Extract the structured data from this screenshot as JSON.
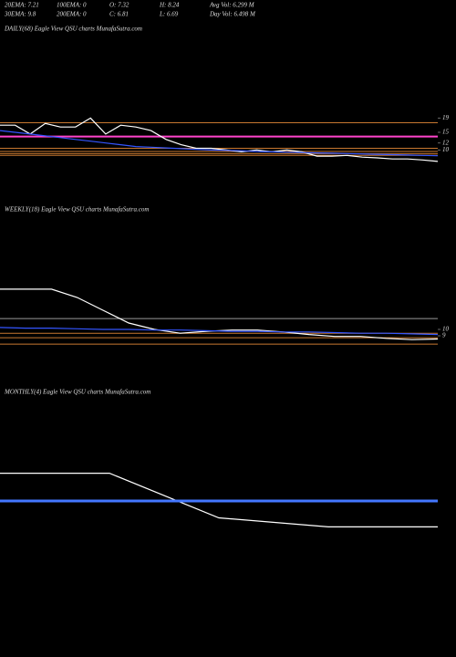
{
  "header": {
    "row1": [
      "20EMA: 7.21",
      "100EMA: 0",
      "O: 7.32",
      "H: 8.24",
      "Avg Vol: 6.299 M"
    ],
    "row2": [
      "30EMA: 9.8",
      "200EMA: 0",
      "C: 6.81",
      "L: 6.69",
      "Day Vol: 6.498 M"
    ]
  },
  "chart_data": [
    {
      "type": "line",
      "title": "DAILY(68) Eagle  View  QSU charts MunafaSutra.com",
      "categories": [
        null,
        null,
        null,
        null,
        null,
        null,
        null,
        null,
        null,
        null,
        null,
        null,
        null,
        null,
        null,
        null,
        null,
        null,
        null,
        null,
        null,
        null,
        null,
        null,
        null,
        null,
        null,
        null,
        null,
        null
      ],
      "series": [
        {
          "color": "#ffffff",
          "values": [
            17,
            17,
            14.5,
            17.5,
            16.5,
            16.5,
            19,
            14.5,
            17,
            16.5,
            15.5,
            13,
            11.5,
            10.5,
            10.5,
            10,
            9.5,
            10,
            9.5,
            10,
            9.5,
            8.3,
            8.3,
            8.5,
            8,
            7.8,
            7.5,
            7.5,
            7.2,
            6.81
          ]
        },
        {
          "color": "#3355ff",
          "values": [
            15.5,
            15,
            14.5,
            14,
            13.5,
            13,
            12.5,
            12,
            11.5,
            11,
            10.8,
            10.6,
            10.4,
            10.2,
            10,
            9.9,
            9.8,
            9.6,
            9.5,
            9.4,
            9.3,
            9.2,
            9.1,
            9,
            8.9,
            8.8,
            8.7,
            8.6,
            8.5,
            8.4
          ]
        }
      ],
      "hlines": [
        {
          "value": 17.7,
          "color": "#c87830"
        },
        {
          "value": 13.8,
          "color": "#ff44cc"
        },
        {
          "value": 10.5,
          "color": "#c87830"
        },
        {
          "value": 9.6,
          "color": "#c87830"
        },
        {
          "value": 9,
          "color": "#c87830"
        },
        {
          "value": 8.5,
          "color": "#c87830"
        }
      ],
      "ylim": [
        -3,
        42
      ],
      "yticks": [
        19,
        15,
        12,
        10
      ]
    },
    {
      "type": "line",
      "title": "WEEKLY(18) Eagle  View  QSU charts MunafaSutra.com",
      "categories": [
        null,
        null,
        null,
        null,
        null,
        null,
        null,
        null,
        null,
        null,
        null,
        null,
        null,
        null,
        null,
        null,
        null,
        null
      ],
      "series": [
        {
          "color": "#ffffff",
          "values": [
            16.3,
            16.3,
            16.3,
            15,
            13,
            11,
            10,
            9.4,
            9.7,
            9.9,
            9.9,
            9.6,
            9.2,
            8.9,
            8.9,
            8.6,
            8.4,
            8.5
          ]
        },
        {
          "color": "#3355ff",
          "values": [
            10.3,
            10.2,
            10.2,
            10.1,
            10,
            10,
            9.9,
            9.9,
            9.8,
            9.7,
            9.7,
            9.6,
            9.6,
            9.5,
            9.4,
            9.4,
            9.3,
            9.2
          ]
        }
      ],
      "hlines": [
        {
          "value": 11.7,
          "color": "#999999"
        },
        {
          "value": 9.4,
          "color": "#c87830"
        },
        {
          "value": 8.7,
          "color": "#c87830"
        },
        {
          "value": 7.7,
          "color": "#c87830"
        }
      ],
      "ylim": [
        3,
        28
      ],
      "yticks": [
        10,
        9
      ]
    },
    {
      "type": "line",
      "title": "MONTHLY(4) Eagle  View  QSU charts MunafaSutra.com",
      "categories": [
        null,
        null,
        null,
        null,
        null
      ],
      "series": [
        {
          "color": "#ffffff",
          "values": [
            16.3,
            16.3,
            8.4,
            6.81,
            6.81
          ]
        },
        {
          "color": "#4477ff",
          "values": [
            11.4,
            11.4,
            11.4,
            11.4,
            11.4
          ]
        }
      ],
      "hlines": [],
      "ylim": [
        -13,
        29
      ],
      "yticks": []
    }
  ]
}
